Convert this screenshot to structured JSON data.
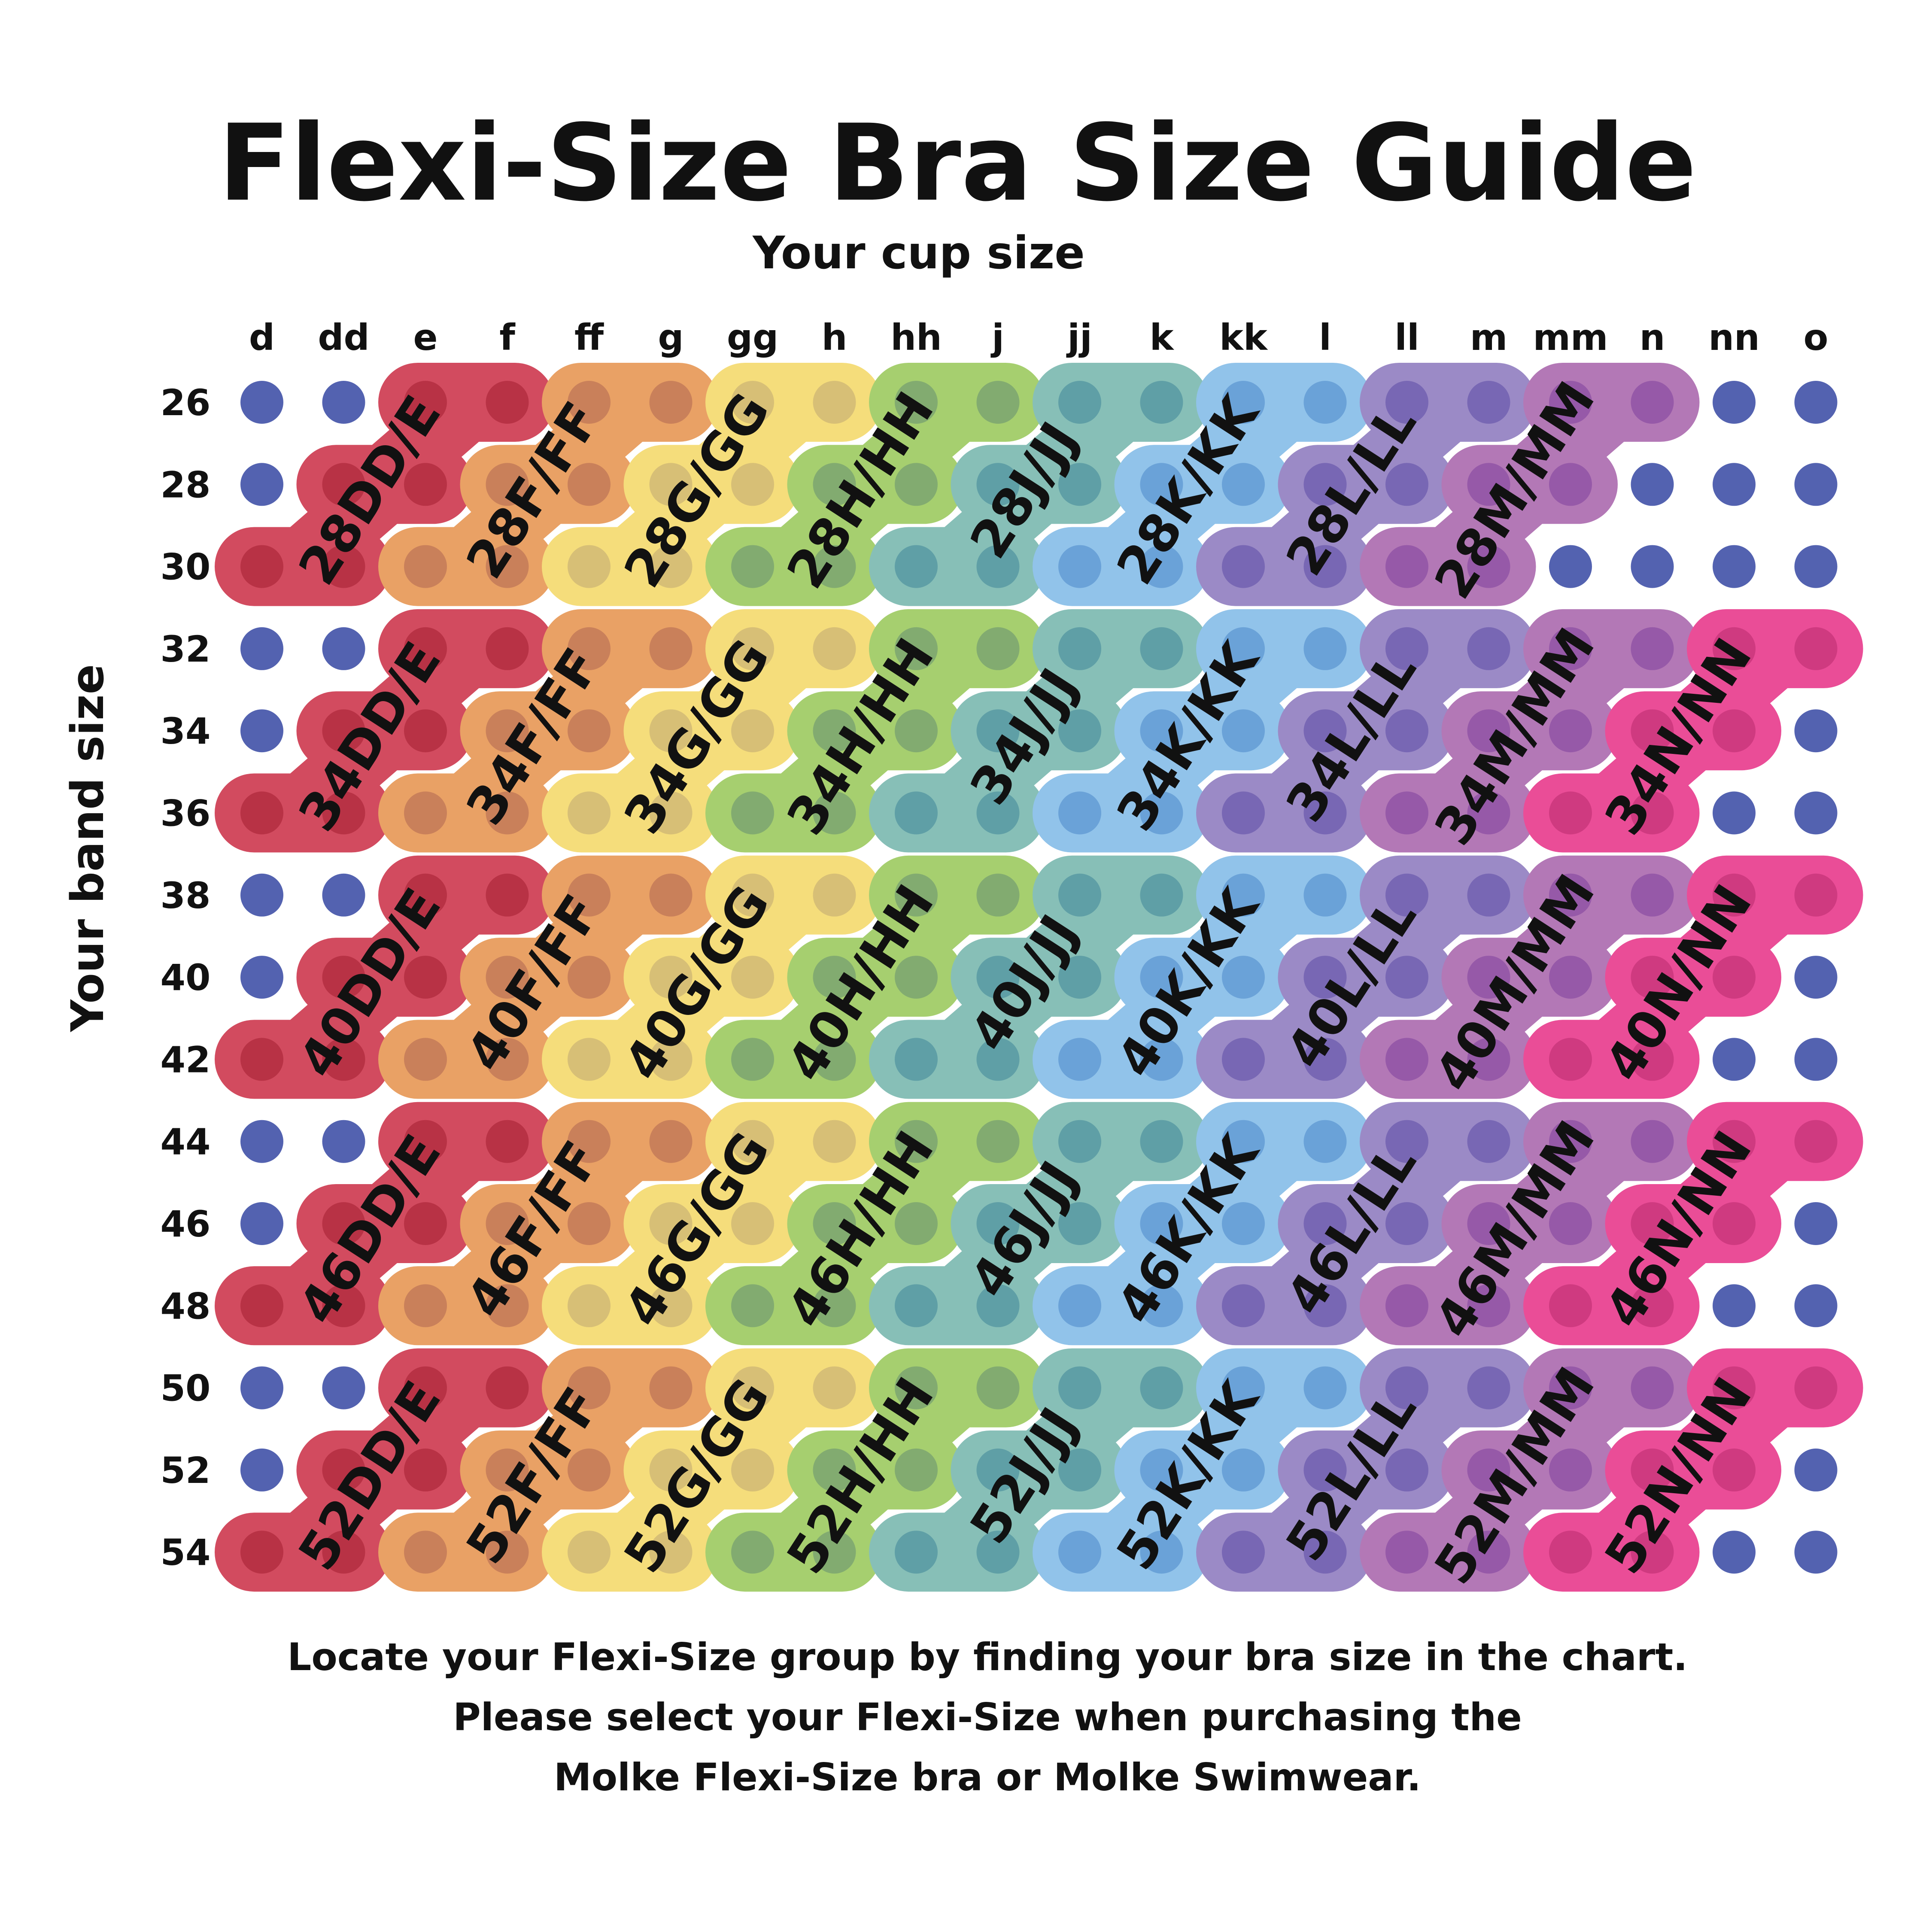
{
  "title": "Flexi-Size Bra Size Guide",
  "cup_axis_label": "Your cup size",
  "band_axis_label": "Your band size",
  "cups": [
    "d",
    "dd",
    "e",
    "f",
    "ff",
    "g",
    "gg",
    "h",
    "hh",
    "j",
    "jj",
    "k",
    "kk",
    "l",
    "ll",
    "m",
    "mm",
    "n",
    "nn",
    "o"
  ],
  "bands": [
    "26",
    "28",
    "30",
    "32",
    "34",
    "36",
    "38",
    "40",
    "42",
    "44",
    "46",
    "48",
    "50",
    "52",
    "54"
  ],
  "band_blocks": [
    {
      "label_band": "28",
      "bands": [
        "26",
        "28",
        "30"
      ]
    },
    {
      "label_band": "34",
      "bands": [
        "32",
        "34",
        "36"
      ]
    },
    {
      "label_band": "40",
      "bands": [
        "38",
        "40",
        "42"
      ]
    },
    {
      "label_band": "46",
      "bands": [
        "44",
        "46",
        "48"
      ]
    },
    {
      "label_band": "52",
      "bands": [
        "50",
        "52",
        "54"
      ]
    }
  ],
  "cup_groups": [
    {
      "cup_label": "DD/E",
      "cups_top": [
        "e",
        "f"
      ],
      "cups_mid": [
        "dd",
        "e"
      ],
      "cups_bottom": [
        "d",
        "dd"
      ],
      "color": "#d24b5f",
      "dot_color": "#b83245"
    },
    {
      "cup_label": "F/FF",
      "cups_top": [
        "ff",
        "g"
      ],
      "cups_mid": [
        "f",
        "ff"
      ],
      "cups_bottom": [
        "e",
        "f"
      ],
      "color": "#e9a165",
      "dot_color": "#c9805a"
    },
    {
      "cup_label": "G/GG",
      "cups_top": [
        "gg",
        "h"
      ],
      "cups_mid": [
        "g",
        "gg"
      ],
      "cups_bottom": [
        "ff",
        "g"
      ],
      "color": "#f5dd7b",
      "dot_color": "#d7bf76"
    },
    {
      "cup_label": "H/HH",
      "cups_top": [
        "hh",
        "j"
      ],
      "cups_mid": [
        "h",
        "hh"
      ],
      "cups_bottom": [
        "gg",
        "h"
      ],
      "color": "#a6cf6f",
      "dot_color": "#82ab70"
    },
    {
      "cup_label": "J/JJ",
      "cups_top": [
        "jj",
        "k"
      ],
      "cups_mid": [
        "j",
        "jj"
      ],
      "cups_bottom": [
        "hh",
        "j"
      ],
      "color": "#87bfb7",
      "dot_color": "#5f9fa6"
    },
    {
      "cup_label": "K/KK",
      "cups_top": [
        "kk",
        "l"
      ],
      "cups_mid": [
        "k",
        "kk"
      ],
      "cups_bottom": [
        "jj",
        "k"
      ],
      "color": "#91c3ea",
      "dot_color": "#6aa2d8"
    },
    {
      "cup_label": "L/LL",
      "cups_top": [
        "ll",
        "m"
      ],
      "cups_mid": [
        "l",
        "ll"
      ],
      "cups_bottom": [
        "kk",
        "l"
      ],
      "color": "#9b8ac6",
      "dot_color": "#7867b4"
    },
    {
      "cup_label": "M/MM",
      "cups_top": [
        "mm",
        "n"
      ],
      "cups_mid": [
        "m",
        "mm"
      ],
      "cups_bottom": [
        "ll",
        "m"
      ],
      "color": "#b378b6",
      "dot_color": "#9659a8"
    },
    {
      "cup_label": "N/NN",
      "cups_top": [
        "nn",
        "o"
      ],
      "cups_mid": [
        "n",
        "nn"
      ],
      "cups_bottom": [
        "mm",
        "n"
      ],
      "color": "#ea4d97",
      "dot_color": "#cf3a80",
      "first_block": 1
    }
  ],
  "empty_dot_color": "#5362b0",
  "footer_lines": [
    "Locate your Flexi-Size group by finding your bra size in the chart.",
    "Please select your Flexi-Size when purchasing the",
    "Molke Flexi-Size bra or Molke Swimwear."
  ]
}
